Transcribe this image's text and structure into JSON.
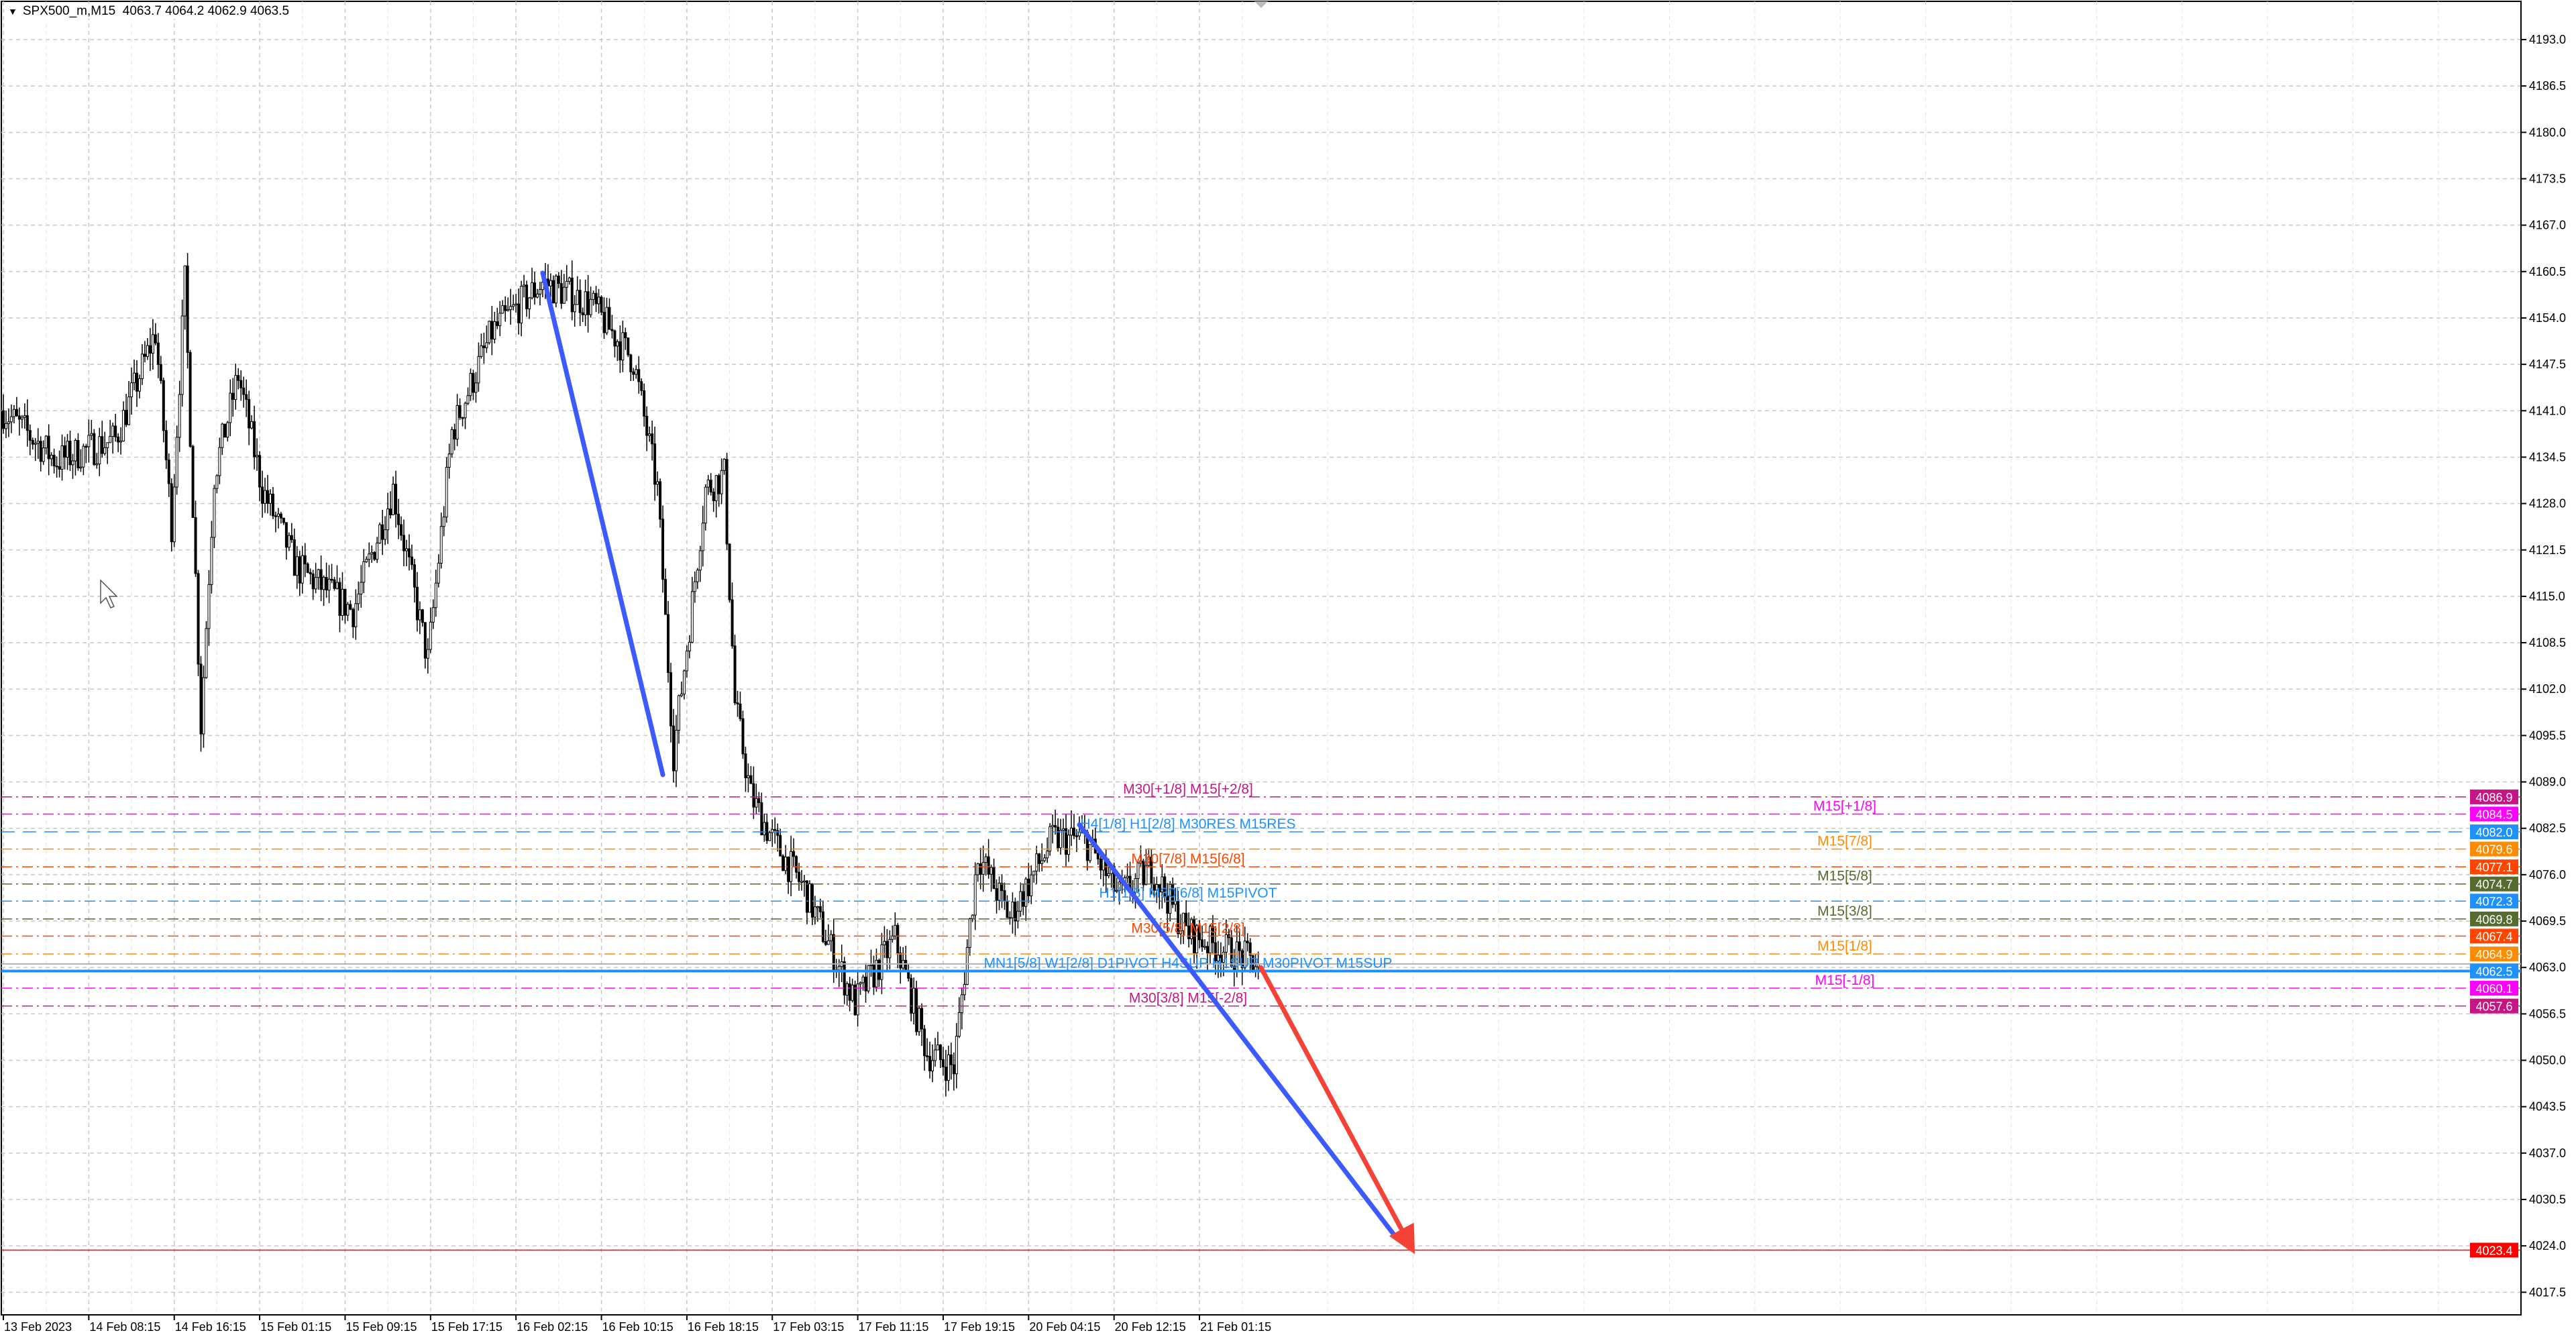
{
  "header": {
    "symbol": "SPX500_m,M15",
    "ohlc": "4063.7 4064.2 4062.9 4063.5"
  },
  "chart_data": {
    "type": "candlestick",
    "symbol": "SPX500_m",
    "timeframe": "M15",
    "ylim": [
      4014.0,
      4198.0
    ],
    "y_ticks": [
      4193.0,
      4186.5,
      4180.0,
      4173.5,
      4167.0,
      4160.5,
      4154.0,
      4147.5,
      4141.0,
      4134.5,
      4128.0,
      4121.5,
      4115.0,
      4108.5,
      4102.0,
      4095.5,
      4089.0,
      4082.5,
      4076.0,
      4069.5,
      4063.0,
      4056.5,
      4050.0,
      4043.5,
      4037.0,
      4030.5,
      4024.0,
      4017.5
    ],
    "x_ticks": [
      "13 Feb 2023",
      "14 Feb 08:15",
      "14 Feb 16:15",
      "15 Feb 01:15",
      "15 Feb 09:15",
      "15 Feb 17:15",
      "16 Feb 02:15",
      "16 Feb 10:15",
      "16 Feb 18:15",
      "17 Feb 03:15",
      "17 Feb 11:15",
      "17 Feb 19:15",
      "20 Feb 04:15",
      "20 Feb 12:15",
      "21 Feb 01:15"
    ],
    "bars_per_x_tick": 32,
    "price_path_bar_price": [
      [
        0,
        4141
      ],
      [
        20,
        4134
      ],
      [
        42,
        4137
      ],
      [
        57,
        4152
      ],
      [
        63,
        4125
      ],
      [
        68,
        4159
      ],
      [
        74,
        4097
      ],
      [
        79,
        4132
      ],
      [
        88,
        4146
      ],
      [
        97,
        4130
      ],
      [
        110,
        4119
      ],
      [
        131,
        4113
      ],
      [
        146,
        4130
      ],
      [
        159,
        4106
      ],
      [
        168,
        4138
      ],
      [
        183,
        4152
      ],
      [
        202,
        4159
      ],
      [
        220,
        4156
      ],
      [
        236,
        4148
      ],
      [
        245,
        4130
      ],
      [
        251,
        4093
      ],
      [
        257,
        4111
      ],
      [
        263,
        4130
      ],
      [
        270,
        4132
      ],
      [
        274,
        4100
      ],
      [
        280,
        4087
      ],
      [
        288,
        4081
      ],
      [
        300,
        4074
      ],
      [
        319,
        4058
      ],
      [
        334,
        4067
      ],
      [
        346,
        4051
      ],
      [
        356,
        4049
      ],
      [
        365,
        4079
      ],
      [
        377,
        4070
      ],
      [
        393,
        4081
      ],
      [
        405,
        4081
      ],
      [
        418,
        4073
      ],
      [
        430,
        4077
      ],
      [
        443,
        4068
      ],
      [
        454,
        4066
      ],
      [
        470,
        4063.5
      ]
    ],
    "current_price": 4063.5,
    "levels": [
      {
        "price": 4086.9,
        "tag": "4086.9",
        "label": "M30[+1/8] M15[+2/8]",
        "color": "#c71585",
        "style": "dashdot"
      },
      {
        "price": 4084.5,
        "tag": "4084.5",
        "label": "M15[+1/8]",
        "color": "#ff00ff",
        "style": "dashdot"
      },
      {
        "price": 4082.0,
        "tag": "4082.0",
        "label": "H4[1/8] H1[2/8] M30RES M15RES",
        "color": "#1e90ff",
        "style": "dash"
      },
      {
        "price": 4079.6,
        "tag": "4079.6",
        "label": "M15[7/8]",
        "color": "#ff8c00",
        "style": "dashdot"
      },
      {
        "price": 4077.1,
        "tag": "4077.1",
        "label": "M30[7/8] M15[6/8]",
        "color": "#ff4500",
        "style": "dashdot"
      },
      {
        "price": 4074.7,
        "tag": "4074.7",
        "label": "M15[5/8]",
        "color": "#556b2f",
        "style": "dashdot"
      },
      {
        "price": 4072.3,
        "tag": "4072.3",
        "label": "H1[1/8] M30[6/8] M15PIVOT",
        "color": "#1e90ff",
        "style": "dashdot"
      },
      {
        "price": 4069.8,
        "tag": "4069.8",
        "label": "M15[3/8]",
        "color": "#556b2f",
        "style": "dashdot"
      },
      {
        "price": 4067.4,
        "tag": "4067.4",
        "label": "M30[5/8] M15[2/8]",
        "color": "#ff4500",
        "style": "dashdot"
      },
      {
        "price": 4064.9,
        "tag": "4064.9",
        "label": "M15[1/8]",
        "color": "#ff8c00",
        "style": "dashdot"
      },
      {
        "price": 4062.5,
        "tag": "4062.5",
        "label": "MN1[5/8] W1[2/8] D1PIVOT H4SUP H1SUP M30PIVOT M15SUP",
        "color": "#1e90ff",
        "style": "solid"
      },
      {
        "price": 4060.1,
        "tag": "4060.1",
        "label": "M15[-1/8]",
        "color": "#ff00ff",
        "style": "dashdot"
      },
      {
        "price": 4057.6,
        "tag": "4057.6",
        "label": "M30[3/8] M15[-2/8]",
        "color": "#c71585",
        "style": "dashdot"
      },
      {
        "price": 4023.4,
        "tag": "4023.4",
        "label": "",
        "color": "#ff0000",
        "style": "solid"
      }
    ],
    "trendlines": [
      {
        "from": [
          202,
          4160.3
        ],
        "to": [
          247,
          4090.0
        ],
        "color": "#3d5afe",
        "arrow": false
      },
      {
        "from": [
          403,
          4083.0
        ],
        "to": [
          522,
          4025.0
        ],
        "color": "#3d5afe",
        "arrow": false
      },
      {
        "from": [
          471,
          4063.0
        ],
        "to": [
          527,
          4024.0
        ],
        "color": "#f44336",
        "arrow": true
      }
    ]
  }
}
